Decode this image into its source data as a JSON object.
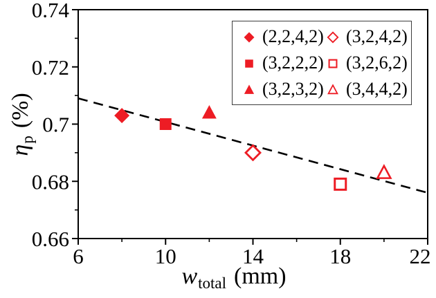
{
  "figure": {
    "background": "#ffffff"
  },
  "chart_data": {
    "type": "scatter",
    "title": "",
    "xlabel": {
      "variable": "w",
      "subscript": "total",
      "unit": "(mm)"
    },
    "ylabel": {
      "variable": "η",
      "subscript": "p",
      "unit": "(%)"
    },
    "xlim": [
      6,
      22
    ],
    "ylim": [
      0.66,
      0.74
    ],
    "x_major_tick_values": [
      6,
      10,
      14,
      18,
      22
    ],
    "x_major_tick_labels": [
      "6",
      "10",
      "14",
      "18",
      "22"
    ],
    "x_minor_tick_values": [
      8,
      12,
      16,
      20
    ],
    "y_major_tick_values": [
      0.66,
      0.68,
      0.7,
      0.72,
      0.74
    ],
    "y_major_tick_labels": [
      "0.66",
      "0.68",
      "0.7",
      "0.72",
      "0.74"
    ],
    "y_minor_tick_values": [
      0.67,
      0.69,
      0.71,
      0.73
    ],
    "grid": false,
    "axis_color": "#000000",
    "marker_color": "#ed1c24",
    "trend_line": {
      "style": "dashed",
      "color": "#000000",
      "x": [
        6,
        22
      ],
      "y": [
        0.709,
        0.676
      ]
    },
    "series": [
      {
        "name": "(2,2,4,2)",
        "marker": "diamond",
        "fill": "filled",
        "points": [
          [
            8,
            0.703
          ]
        ]
      },
      {
        "name": "(3,2,4,2)",
        "marker": "diamond",
        "fill": "open",
        "points": [
          [
            14,
            0.69
          ]
        ]
      },
      {
        "name": "(3,2,2,2)",
        "marker": "square",
        "fill": "filled",
        "points": [
          [
            10,
            0.7
          ]
        ]
      },
      {
        "name": "(3,2,6,2)",
        "marker": "square",
        "fill": "open",
        "points": [
          [
            18,
            0.679
          ]
        ]
      },
      {
        "name": "(3,2,3,2)",
        "marker": "triangle",
        "fill": "filled",
        "points": [
          [
            12,
            0.704
          ]
        ]
      },
      {
        "name": "(3,4,4,2)",
        "marker": "triangle",
        "fill": "open",
        "points": [
          [
            20,
            0.683
          ]
        ]
      }
    ],
    "legend": {
      "position": "top-right",
      "columns": 2,
      "entries": [
        {
          "label": "(2,2,4,2)",
          "marker": "diamond",
          "fill": "filled"
        },
        {
          "label": "(3,2,4,2)",
          "marker": "diamond",
          "fill": "open"
        },
        {
          "label": "(3,2,2,2)",
          "marker": "square",
          "fill": "filled"
        },
        {
          "label": "(3,2,6,2)",
          "marker": "square",
          "fill": "open"
        },
        {
          "label": "(3,2,3,2)",
          "marker": "triangle",
          "fill": "filled"
        },
        {
          "label": "(3,4,4,2)",
          "marker": "triangle",
          "fill": "open"
        }
      ]
    }
  }
}
